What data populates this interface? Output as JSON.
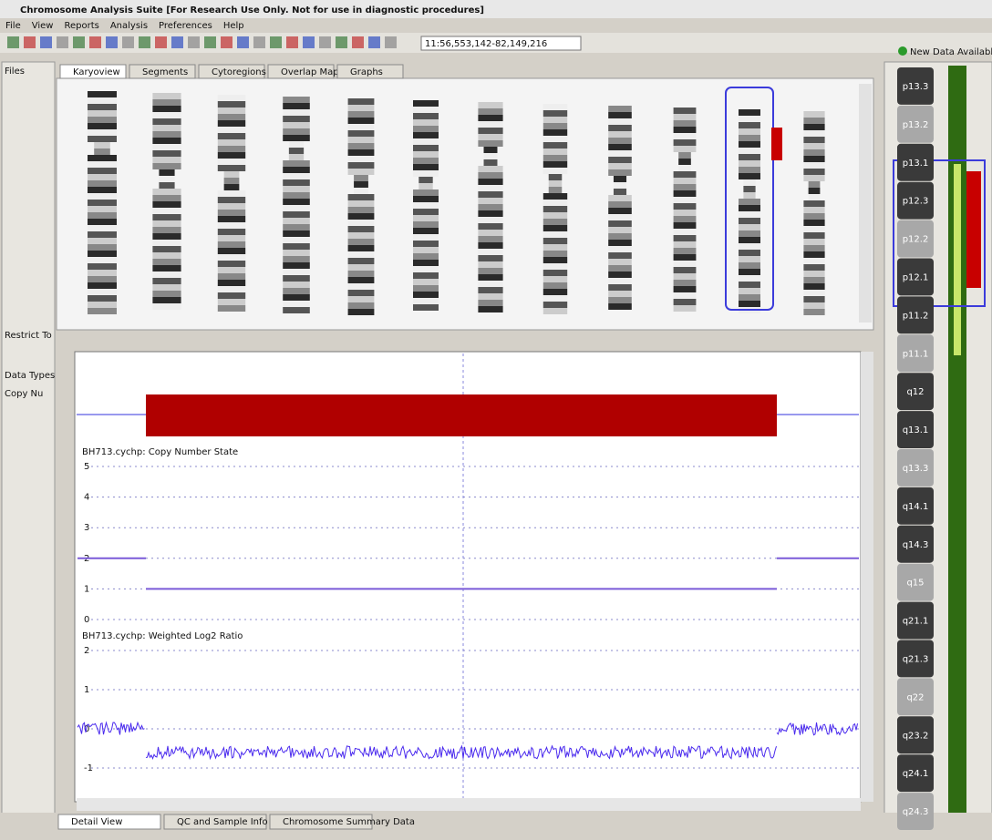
{
  "window_title": "Chromosome Analysis Suite [For Research Use Only. Not for use in diagnostic procedures]",
  "menu": [
    "File",
    "View",
    "Reports",
    "Analysis",
    "Preferences",
    "Help"
  ],
  "location": "11:56,553,142-82,149,216",
  "new_data": "New Data Available",
  "tabs": [
    "Karyoview",
    "Segments",
    "Cytoregions",
    "Overlap Map",
    "Graphs"
  ],
  "left_panel": {
    "files": "Files",
    "restrict": "Restrict To",
    "data_types": "Data Types",
    "copy_number": "Copy Nu"
  },
  "cn_track": {
    "label": "BH713.cychp: Copy Number State",
    "ylim": [
      0,
      5
    ],
    "yticks": [
      0,
      1,
      2,
      3,
      4,
      5
    ],
    "segments": [
      2,
      1,
      2
    ]
  },
  "log2_track": {
    "label": "BH713.cychp: Weighted Log2 Ratio",
    "ylim": [
      -1,
      2
    ],
    "yticks": [
      -1,
      0,
      1,
      2
    ],
    "segments": [
      0,
      -0.6,
      0
    ]
  },
  "ideogram_bands": [
    "p13.3",
    "p13.2",
    "p13.1",
    "p12.3",
    "p12.2",
    "p12.1",
    "p11.2",
    "p11.1",
    "q12",
    "q13.1",
    "q13.3",
    "q14.1",
    "q14.3",
    "q15",
    "q21.1",
    "q21.3",
    "q22",
    "q23.2",
    "q24.1",
    "q24.3"
  ],
  "bottom_tabs": [
    "Detail View",
    "QC and Sample Info",
    "Chromosome Summary Data"
  ]
}
